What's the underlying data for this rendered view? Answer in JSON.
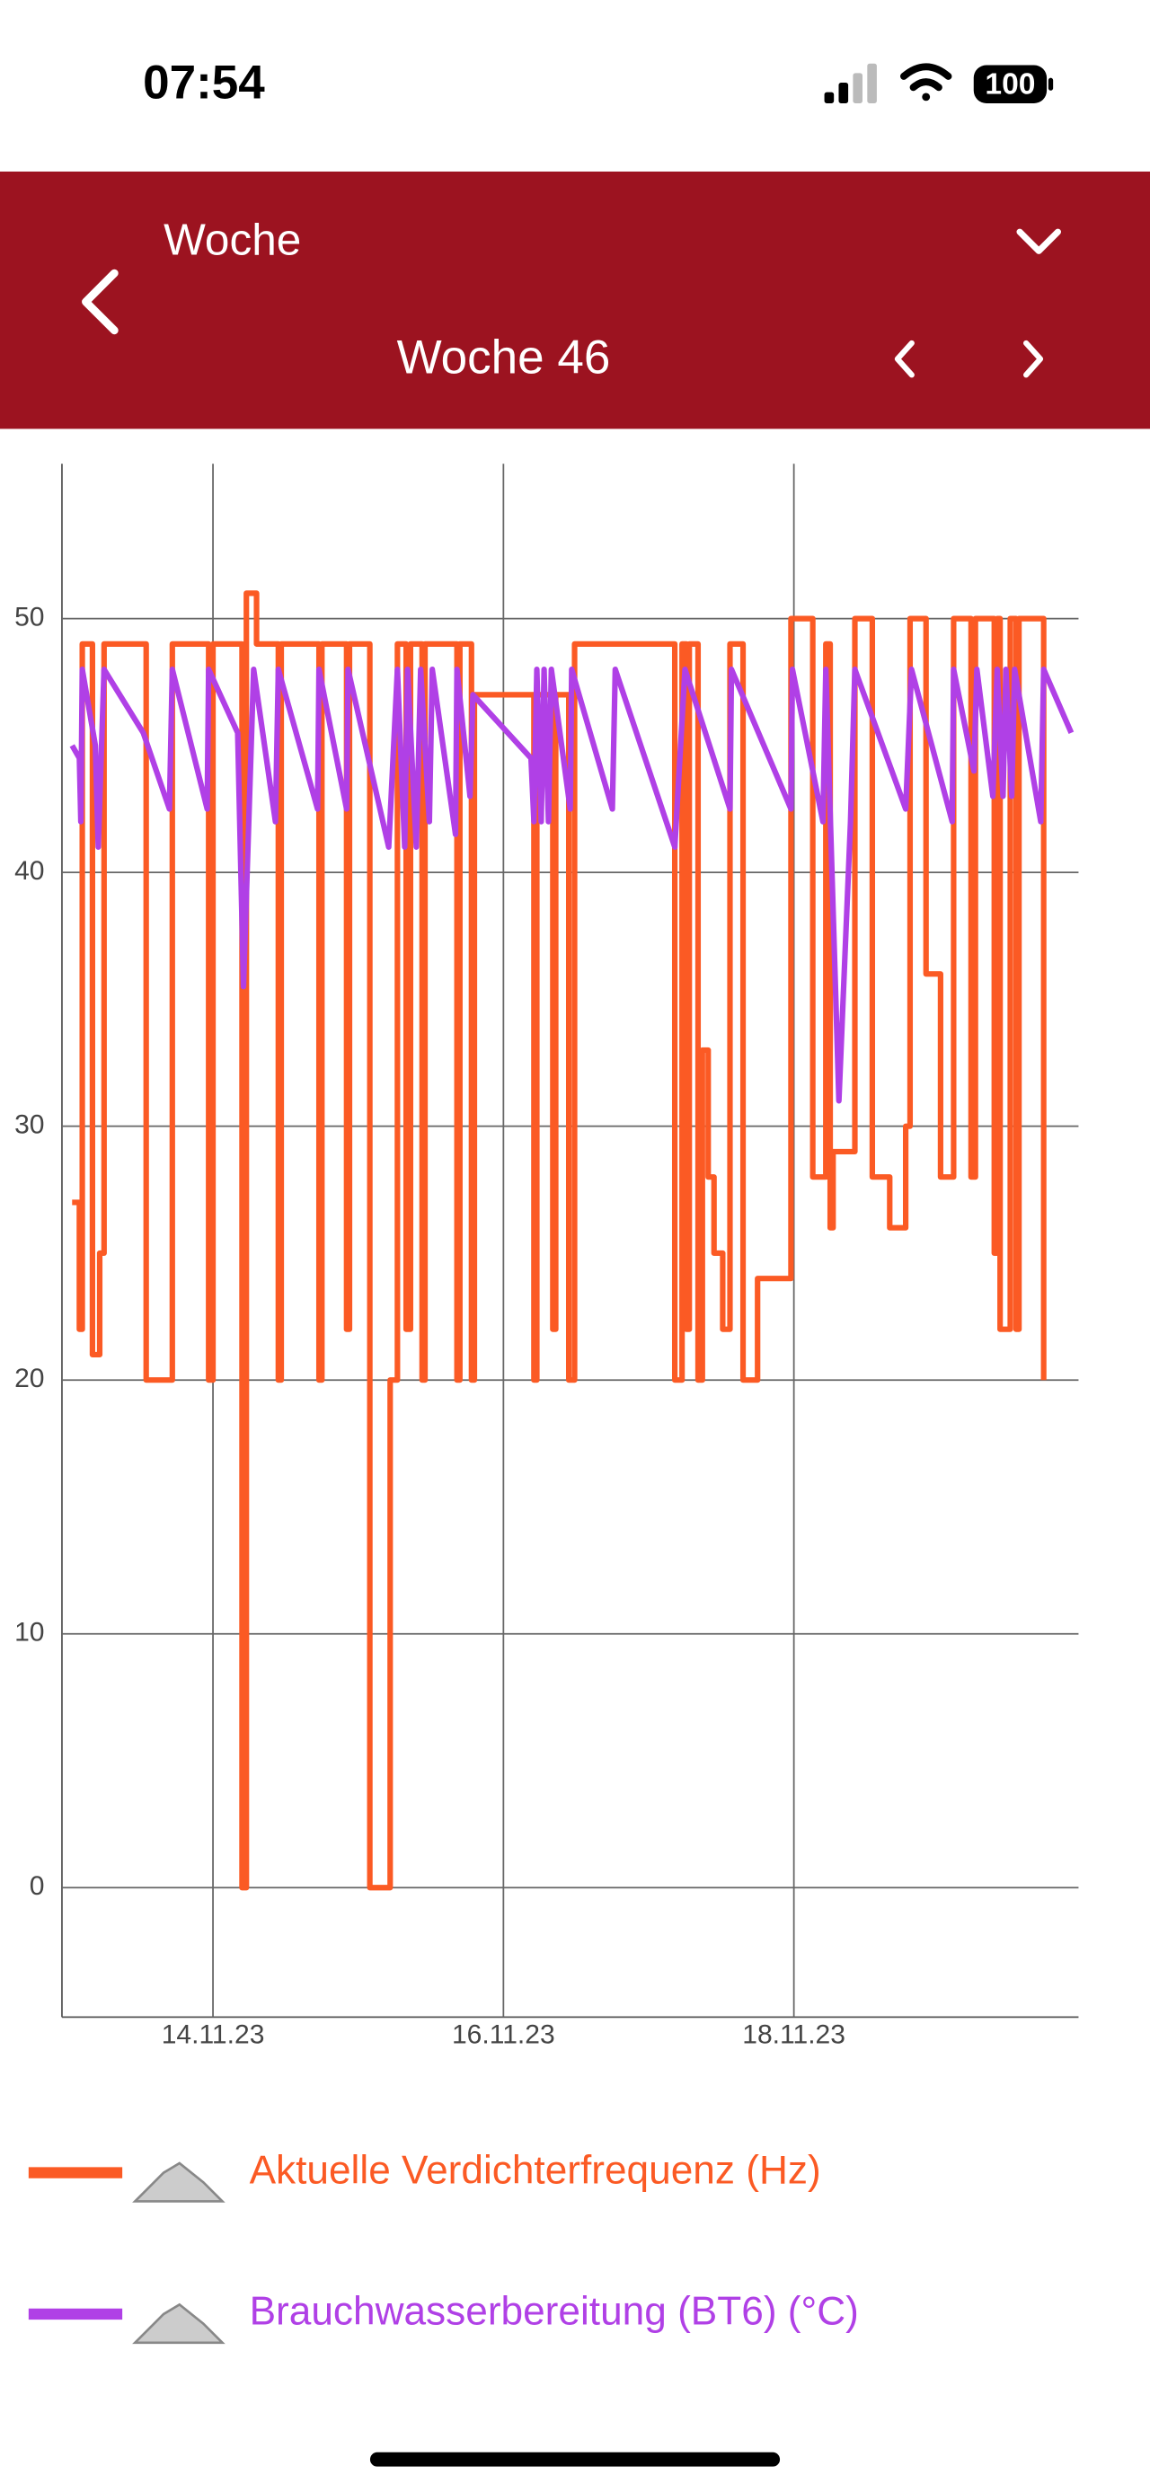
{
  "status_bar": {
    "time": "07:54",
    "battery": "100"
  },
  "header": {
    "period_label": "Woche",
    "week_label": "Woche 46"
  },
  "chart_data": {
    "type": "line",
    "xlim": [
      12.96,
      19.96
    ],
    "xticks": [
      {
        "value": 14,
        "label": "14.11.23"
      },
      {
        "value": 16,
        "label": "16.11.23"
      },
      {
        "value": 18,
        "label": "18.11.23"
      }
    ],
    "ylim": [
      -5.1,
      56.1
    ],
    "yticks": [
      0,
      10,
      20,
      30,
      40,
      50
    ],
    "grid": true,
    "legend": "bottom",
    "series": [
      {
        "name": "Aktuelle Verdichterfrequenz (Hz)",
        "color": "#fb5a24",
        "x": [
          13.03,
          13.08,
          13.08,
          13.1,
          13.1,
          13.17,
          13.17,
          13.22,
          13.22,
          13.25,
          13.25,
          13.54,
          13.54,
          13.72,
          13.72,
          13.97,
          13.97,
          14.0,
          14.0,
          14.2,
          14.2,
          14.23,
          14.23,
          14.3,
          14.3,
          14.45,
          14.45,
          14.47,
          14.47,
          14.73,
          14.73,
          14.75,
          14.75,
          14.92,
          14.92,
          14.94,
          14.94,
          15.08,
          15.08,
          15.22,
          15.22,
          15.27,
          15.27,
          15.33,
          15.33,
          15.36,
          15.36,
          15.44,
          15.44,
          15.46,
          15.46,
          15.68,
          15.68,
          15.7,
          15.7,
          15.78,
          15.78,
          15.8,
          15.8,
          16.21,
          16.21,
          16.23,
          16.23,
          16.34,
          16.34,
          16.36,
          16.36,
          16.45,
          16.45,
          16.49,
          16.49,
          17.18,
          17.18,
          17.23,
          17.23,
          17.26,
          17.26,
          17.28,
          17.28,
          17.34,
          17.34,
          17.37,
          17.37,
          17.41,
          17.41,
          17.45,
          17.45,
          17.51,
          17.51,
          17.56,
          17.56,
          17.65,
          17.65,
          17.75,
          17.75,
          17.98,
          17.98,
          18.13,
          18.13,
          18.22,
          18.22,
          18.25,
          18.25,
          18.27,
          18.27,
          18.42,
          18.42,
          18.54,
          18.54,
          18.66,
          18.66,
          18.77,
          18.77,
          18.8,
          18.8,
          18.91,
          18.91,
          19.01,
          19.01,
          19.1,
          19.1,
          19.22,
          19.22,
          19.25,
          19.25,
          19.38,
          19.38,
          19.4,
          19.4,
          19.42,
          19.42,
          19.49,
          19.49,
          19.53,
          19.53,
          19.55,
          19.55,
          19.72,
          19.72
        ],
        "values": [
          27,
          27,
          22,
          22,
          49,
          49,
          21,
          21,
          25,
          25,
          49,
          49,
          20,
          20,
          49,
          49,
          20,
          20,
          49,
          49,
          0,
          0,
          51,
          51,
          49,
          49,
          20,
          20,
          49,
          49,
          20,
          20,
          49,
          49,
          22,
          22,
          49,
          49,
          0,
          0,
          20,
          20,
          49,
          49,
          22,
          22,
          49,
          49,
          20,
          20,
          49,
          49,
          20,
          20,
          49,
          49,
          20,
          20,
          47,
          47,
          20,
          20,
          47,
          47,
          22,
          22,
          47,
          47,
          20,
          20,
          49,
          49,
          20,
          20,
          49,
          49,
          22,
          22,
          49,
          49,
          20,
          20,
          33,
          33,
          28,
          28,
          25,
          25,
          22,
          22,
          49,
          49,
          20,
          20,
          24,
          24,
          50,
          50,
          28,
          28,
          49,
          49,
          26,
          26,
          29,
          29,
          50,
          50,
          28,
          28,
          26,
          26,
          30,
          30,
          50,
          50,
          36,
          36,
          28,
          28,
          50,
          50,
          28,
          28,
          50,
          50,
          25,
          25,
          50,
          50,
          22,
          22,
          50,
          50,
          22,
          22,
          50,
          50,
          20
        ]
      },
      {
        "name": "Brauchwasserbereitung (BT6) (°C)",
        "color": "#b040e6",
        "x": [
          13.03,
          13.08,
          13.09,
          13.1,
          13.19,
          13.21,
          13.25,
          13.52,
          13.7,
          13.72,
          13.96,
          13.97,
          14.17,
          14.21,
          14.28,
          14.43,
          14.45,
          14.72,
          14.73,
          14.92,
          14.93,
          15.21,
          15.27,
          15.32,
          15.34,
          15.4,
          15.43,
          15.49,
          15.51,
          15.67,
          15.68,
          15.77,
          15.79,
          16.19,
          16.21,
          16.23,
          16.26,
          16.28,
          16.31,
          16.33,
          16.46,
          16.47,
          16.75,
          16.77,
          17.18,
          17.25,
          17.56,
          17.57,
          17.98,
          17.99,
          18.2,
          18.22,
          18.31,
          18.39,
          18.42,
          18.77,
          18.81,
          19.09,
          19.1,
          19.24,
          19.26,
          19.37,
          19.4,
          19.44,
          19.46,
          19.5,
          19.52,
          19.7,
          19.72,
          19.91
        ],
        "values": [
          45,
          44.5,
          42,
          48,
          45,
          41,
          48,
          45.5,
          42.5,
          48,
          42.5,
          48,
          45.5,
          35.5,
          48,
          42,
          48,
          42.5,
          48,
          42.5,
          48,
          41,
          48,
          41,
          48,
          41,
          48,
          42,
          48,
          41.5,
          48,
          43,
          47,
          44.5,
          42,
          48,
          42,
          48,
          42,
          48,
          42.5,
          48,
          42.5,
          48,
          41,
          48,
          42.5,
          48,
          42.5,
          48,
          42,
          48,
          31,
          42,
          48,
          42.5,
          48,
          42,
          48,
          44,
          48,
          43,
          48,
          43,
          48,
          43,
          48,
          42,
          48,
          45.5
        ]
      }
    ]
  }
}
